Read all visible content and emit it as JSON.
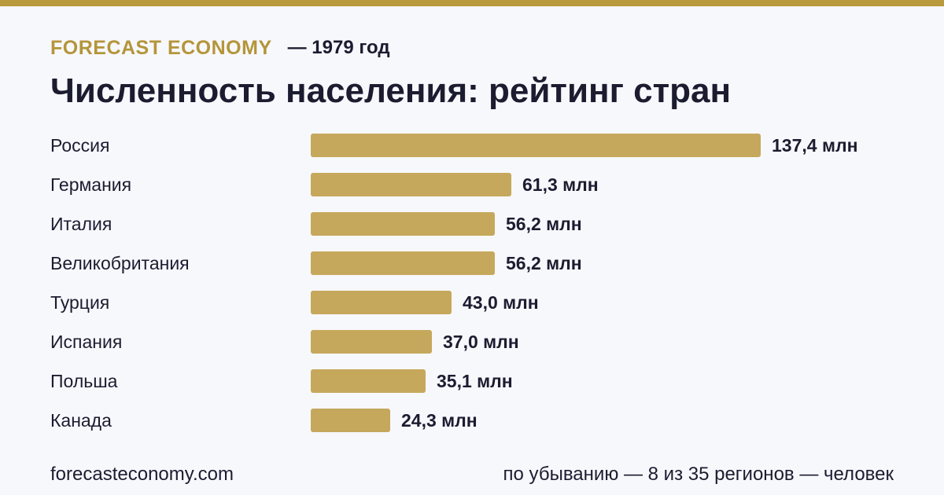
{
  "header": {
    "brand": "FORECAST ECONOMY",
    "year_label": "— 1979 год",
    "title": "Численность населения: рейтинг стран"
  },
  "footer": {
    "site": "forecasteconomy.com",
    "note": "по убыванию — 8 из 35 регионов — человек"
  },
  "colors": {
    "accent": "#b99a3c",
    "bar": "#c6a85c",
    "text": "#1c1c30",
    "background": "#f7f8fc"
  },
  "chart_data": {
    "type": "bar",
    "orientation": "horizontal",
    "categories": [
      "Россия",
      "Германия",
      "Италия",
      "Великобритания",
      "Турция",
      "Испания",
      "Польша",
      "Канада"
    ],
    "values": [
      137.4,
      61.3,
      56.2,
      56.2,
      43.0,
      37.0,
      35.1,
      24.3
    ],
    "value_labels": [
      "137,4 млн",
      "61,3 млн",
      "56,2 млн",
      "56,2 млн",
      "43,0 млн",
      "37,0 млн",
      "35,1 млн",
      "24,3 млн"
    ],
    "unit": "млн",
    "title": "Численность населения: рейтинг стран",
    "grid": false,
    "legend": "none"
  }
}
